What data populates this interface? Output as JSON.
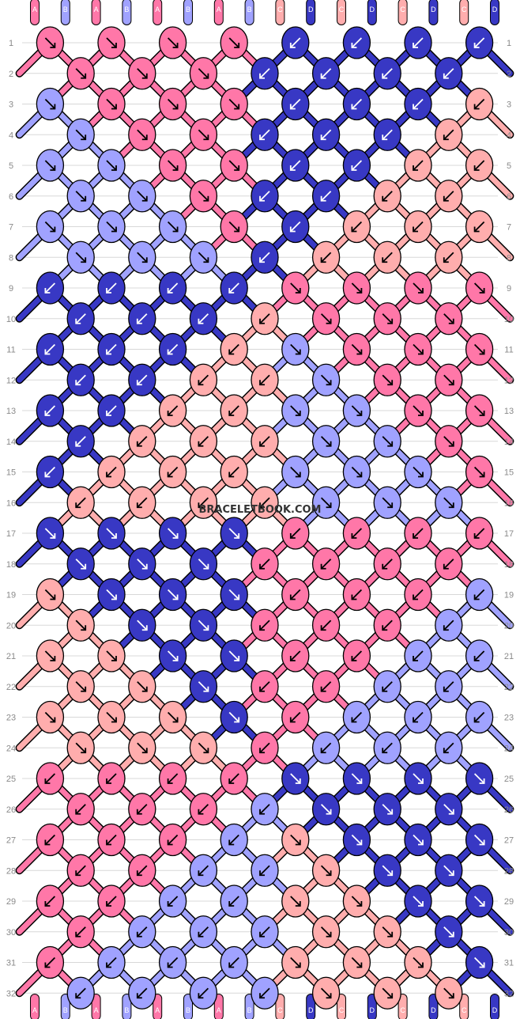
{
  "watermark": "BRACELETBOOK.COM",
  "colors": {
    "A": "#ff77a8",
    "B": "#a0a2ff",
    "C": "#ffadad",
    "D": "#3838c4",
    "outline": "#000000",
    "gridline": "#d8d8d8"
  },
  "top_strings": [
    "A",
    "B",
    "A",
    "B",
    "A",
    "B",
    "A",
    "B",
    "C",
    "D",
    "C",
    "D",
    "C",
    "D",
    "C",
    "D"
  ],
  "bottom_strings": [
    "A",
    "B",
    "A",
    "B",
    "A",
    "B",
    "A",
    "B",
    "C",
    "D",
    "C",
    "D",
    "C",
    "D",
    "C",
    "D"
  ],
  "row_labels": [
    "1",
    "2",
    "3",
    "4",
    "5",
    "6",
    "7",
    "8",
    "9",
    "10",
    "11",
    "12",
    "13",
    "14",
    "15",
    "16",
    "17",
    "18",
    "19",
    "20",
    "21",
    "22",
    "23",
    "24",
    "25",
    "26",
    "27",
    "28",
    "29",
    "30",
    "31",
    "32"
  ],
  "knot_rows": [
    [
      "A:se",
      "A:se",
      "A:se",
      "A:se",
      "D:sw",
      "D:sw",
      "D:sw",
      "D:sw"
    ],
    [
      "A:se",
      "A:se",
      "A:se",
      "D:sw",
      "D:sw",
      "D:sw",
      "D:sw"
    ],
    [
      "B:se",
      "A:se",
      "A:se",
      "A:se",
      "D:sw",
      "D:sw",
      "D:sw",
      "C:sw"
    ],
    [
      "B:se",
      "A:se",
      "A:se",
      "D:sw",
      "D:sw",
      "D:sw",
      "C:sw"
    ],
    [
      "B:se",
      "B:se",
      "A:se",
      "A:se",
      "D:sw",
      "D:sw",
      "C:sw",
      "C:sw"
    ],
    [
      "B:se",
      "B:se",
      "A:se",
      "D:sw",
      "D:sw",
      "C:sw",
      "C:sw"
    ],
    [
      "B:se",
      "B:se",
      "B:se",
      "A:se",
      "D:sw",
      "C:sw",
      "C:sw",
      "C:sw"
    ],
    [
      "B:se",
      "B:se",
      "B:se",
      "D:sw",
      "C:sw",
      "C:sw",
      "C:sw"
    ],
    [
      "D:sw",
      "D:sw",
      "D:sw",
      "D:sw",
      "A:se",
      "A:se",
      "A:se",
      "A:se"
    ],
    [
      "D:sw",
      "D:sw",
      "D:sw",
      "C:sw",
      "A:se",
      "A:se",
      "A:se"
    ],
    [
      "D:sw",
      "D:sw",
      "D:sw",
      "C:sw",
      "B:se",
      "A:se",
      "A:se",
      "A:se"
    ],
    [
      "D:sw",
      "D:sw",
      "C:sw",
      "C:sw",
      "B:se",
      "A:se",
      "A:se"
    ],
    [
      "D:sw",
      "D:sw",
      "C:sw",
      "C:sw",
      "B:se",
      "B:se",
      "A:se",
      "A:se"
    ],
    [
      "D:sw",
      "C:sw",
      "C:sw",
      "C:sw",
      "B:se",
      "B:se",
      "A:se"
    ],
    [
      "D:sw",
      "C:sw",
      "C:sw",
      "C:sw",
      "B:se",
      "B:se",
      "B:se",
      "A:se"
    ],
    [
      "C:sw",
      "C:sw",
      "C:sw",
      "C:sw",
      "B:se",
      "B:se",
      "B:se"
    ],
    [
      "D:se",
      "D:se",
      "D:se",
      "D:se",
      "A:sw",
      "A:sw",
      "A:sw",
      "A:sw"
    ],
    [
      "D:se",
      "D:se",
      "D:se",
      "A:sw",
      "A:sw",
      "A:sw",
      "A:sw"
    ],
    [
      "C:se",
      "D:se",
      "D:se",
      "D:se",
      "A:sw",
      "A:sw",
      "A:sw",
      "B:sw"
    ],
    [
      "C:se",
      "D:se",
      "D:se",
      "A:sw",
      "A:sw",
      "A:sw",
      "B:sw"
    ],
    [
      "C:se",
      "C:se",
      "D:se",
      "D:se",
      "A:sw",
      "A:sw",
      "B:sw",
      "B:sw"
    ],
    [
      "C:se",
      "C:se",
      "D:se",
      "A:sw",
      "A:sw",
      "B:sw",
      "B:sw"
    ],
    [
      "C:se",
      "C:se",
      "C:se",
      "D:se",
      "A:sw",
      "B:sw",
      "B:sw",
      "B:sw"
    ],
    [
      "C:se",
      "C:se",
      "C:se",
      "A:sw",
      "B:sw",
      "B:sw",
      "B:sw"
    ],
    [
      "A:sw",
      "A:sw",
      "A:sw",
      "A:sw",
      "D:se",
      "D:se",
      "D:se",
      "D:se"
    ],
    [
      "A:sw",
      "A:sw",
      "A:sw",
      "B:sw",
      "D:se",
      "D:se",
      "D:se"
    ],
    [
      "A:sw",
      "A:sw",
      "A:sw",
      "B:sw",
      "C:se",
      "D:se",
      "D:se",
      "D:se"
    ],
    [
      "A:sw",
      "A:sw",
      "B:sw",
      "B:sw",
      "C:se",
      "D:se",
      "D:se"
    ],
    [
      "A:sw",
      "A:sw",
      "B:sw",
      "B:sw",
      "C:se",
      "C:se",
      "D:se",
      "D:se"
    ],
    [
      "A:sw",
      "B:sw",
      "B:sw",
      "B:sw",
      "C:se",
      "C:se",
      "D:se"
    ],
    [
      "A:sw",
      "B:sw",
      "B:sw",
      "B:sw",
      "C:se",
      "C:se",
      "C:se",
      "D:se"
    ],
    [
      "B:sw",
      "B:sw",
      "B:sw",
      "B:sw",
      "C:se",
      "C:se",
      "C:se"
    ]
  ]
}
